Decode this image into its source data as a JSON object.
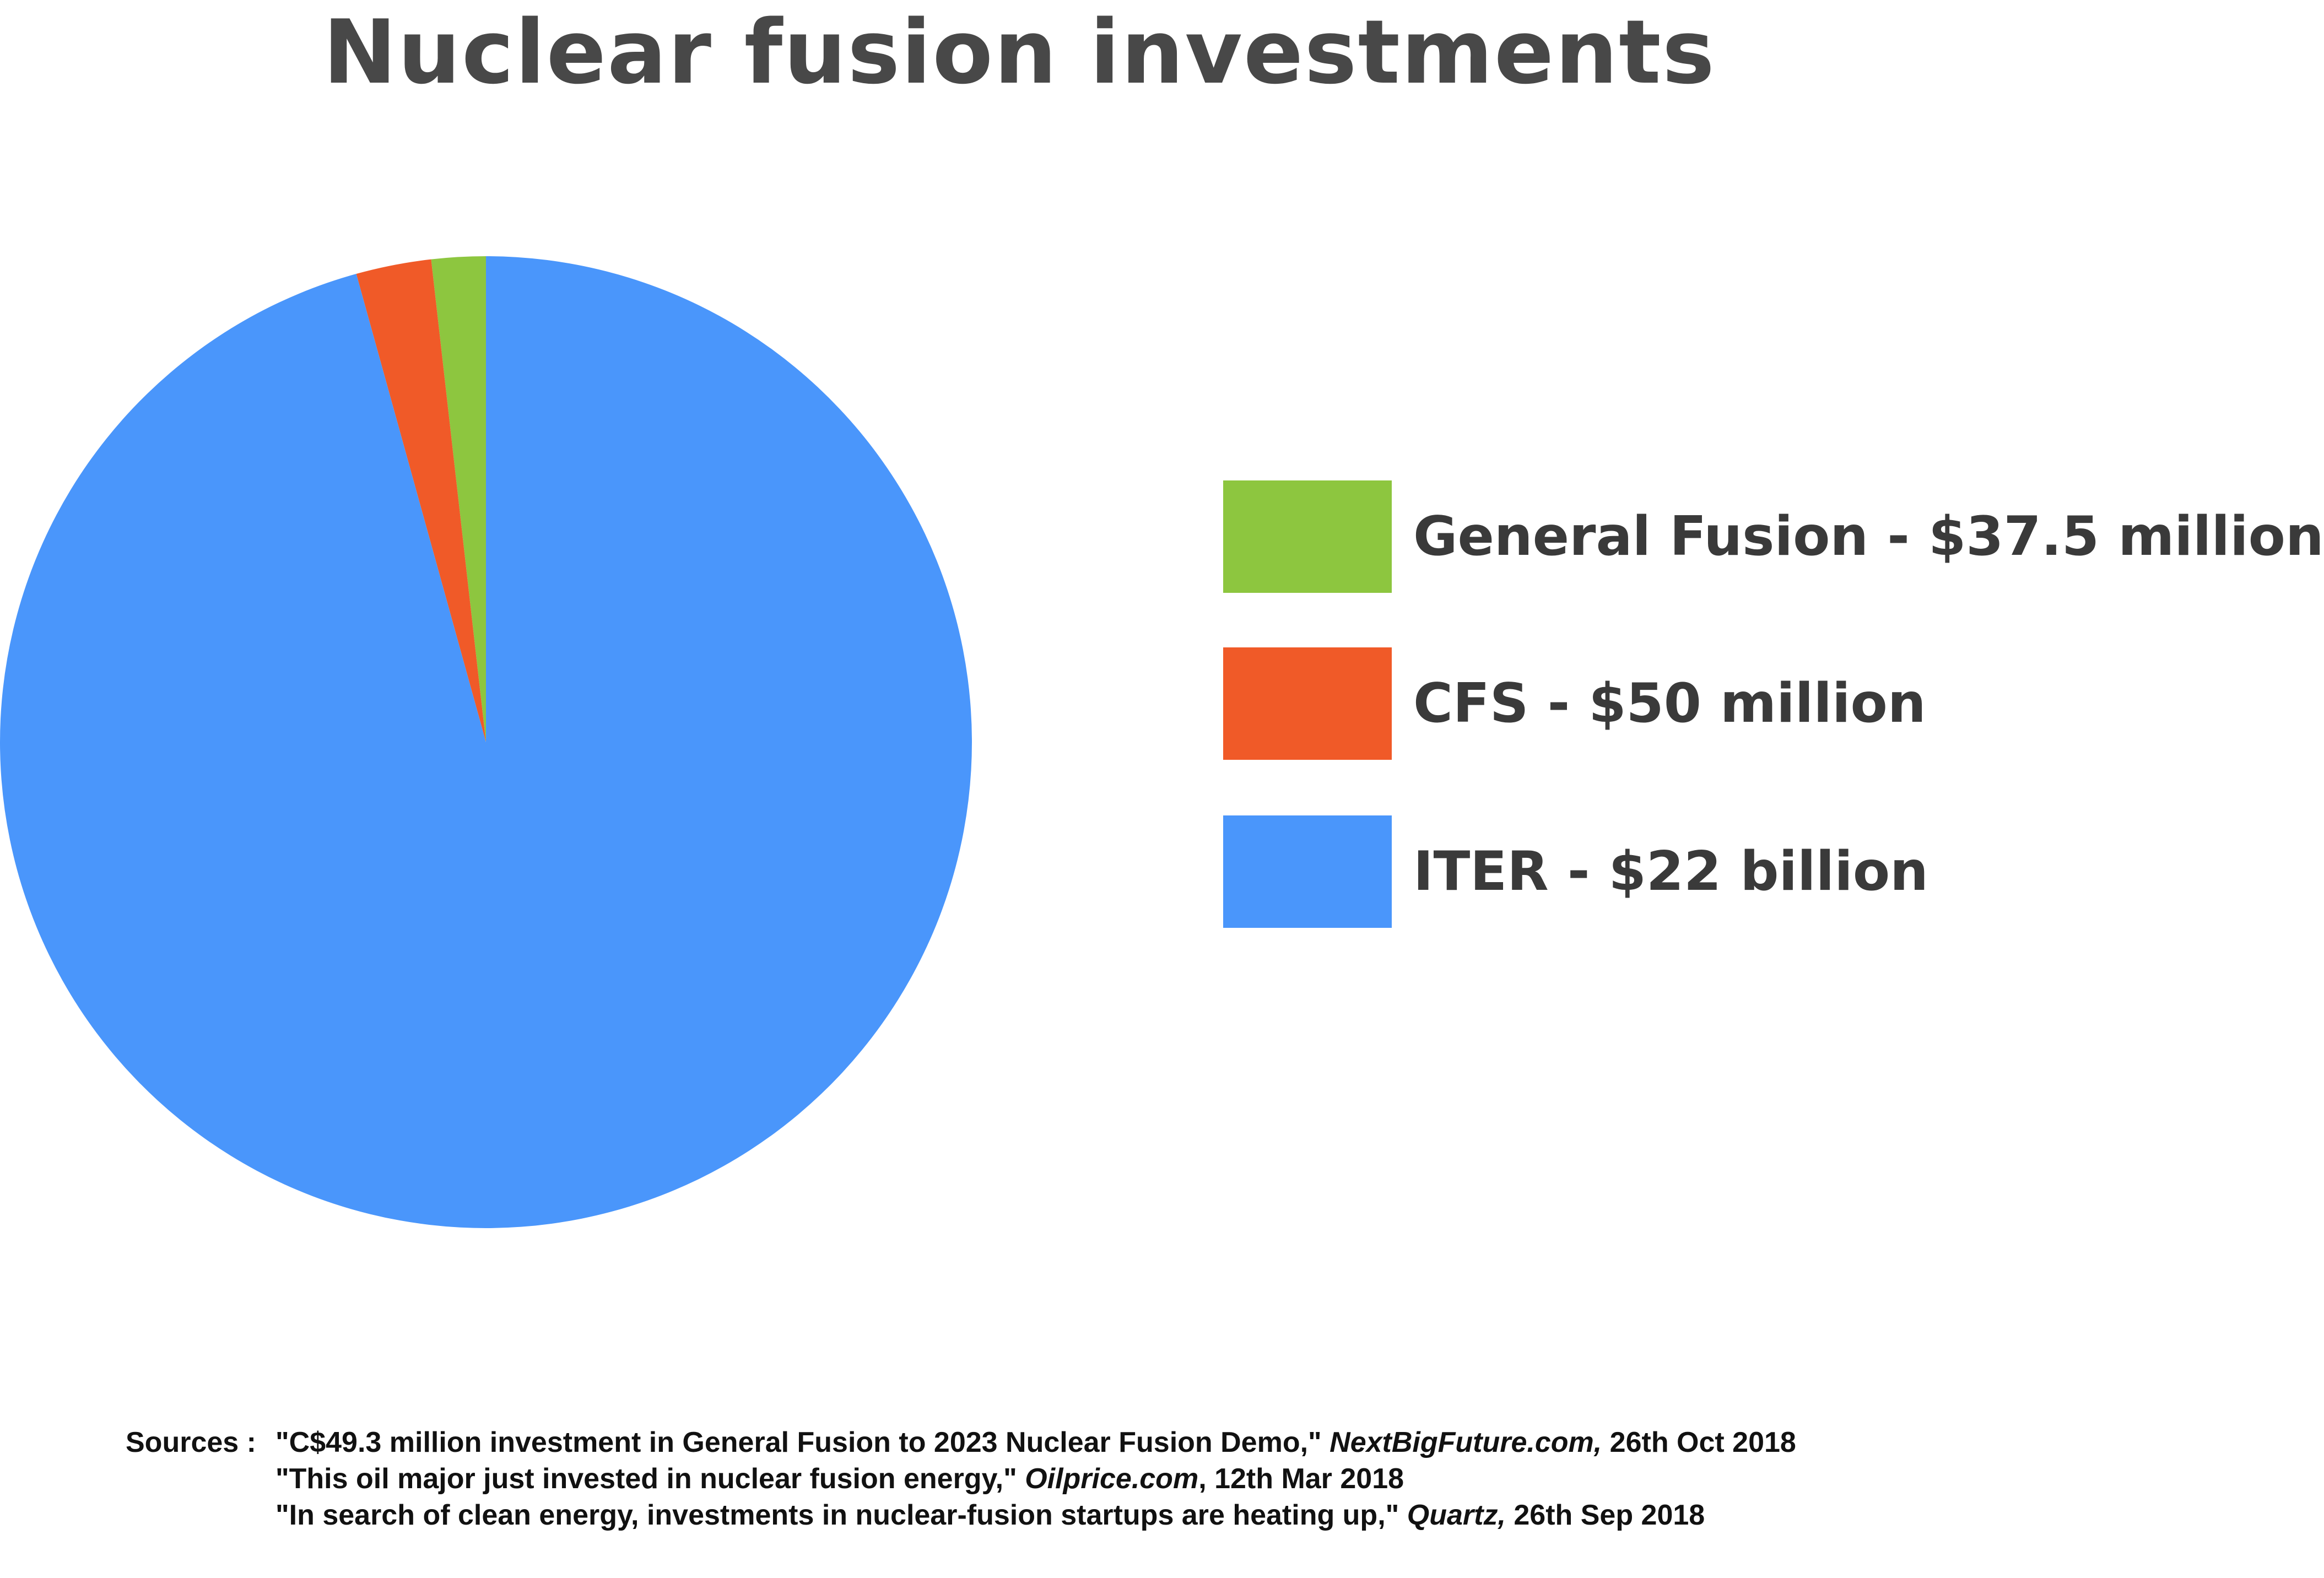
{
  "chart_data": {
    "type": "pie",
    "title": "Nuclear fusion investments",
    "unit": "USD",
    "slices": [
      {
        "name": "ITER",
        "label": "ITER - $22 billion",
        "value": 22000000000,
        "color": "#4a96fb"
      },
      {
        "name": "CFS",
        "label": "CFS - $50 million",
        "value": 50000000,
        "color": "#f05a28"
      },
      {
        "name": "General Fusion",
        "label": "General Fusion - $37.5 million",
        "value": 37500000,
        "color": "#8dc63f"
      }
    ],
    "legend_position": "right",
    "legend_order": [
      "General Fusion",
      "CFS",
      "ITER"
    ]
  },
  "legend": {
    "general_fusion": {
      "name": "General Fusion",
      "amount": "- $37.5 million",
      "color": "#8dc63f"
    },
    "cfs": {
      "name": "CFS",
      "amount": "- $50 million",
      "color": "#f05a28"
    },
    "iter": {
      "name": "ITER",
      "amount": "- $22 billion",
      "color": "#4a96fb"
    }
  },
  "sources": {
    "label": "Sources :",
    "items": [
      {
        "quote": "\"C$49.3 million investment in General Fusion to 2023 Nuclear Fusion Demo,\"",
        "publication": "NextBigFuture.com,",
        "date": "26th Oct 2018"
      },
      {
        "quote": "\"This oil major just invested in nuclear fusion energy,\"",
        "publication": "Oilprice.com",
        "date": ", 12th Mar 2018"
      },
      {
        "quote": "\"In search of clean energy, investments in nuclear-fusion startups are heating up,\"",
        "publication": "Quartz,",
        "date": "26th Sep 2018"
      }
    ]
  }
}
